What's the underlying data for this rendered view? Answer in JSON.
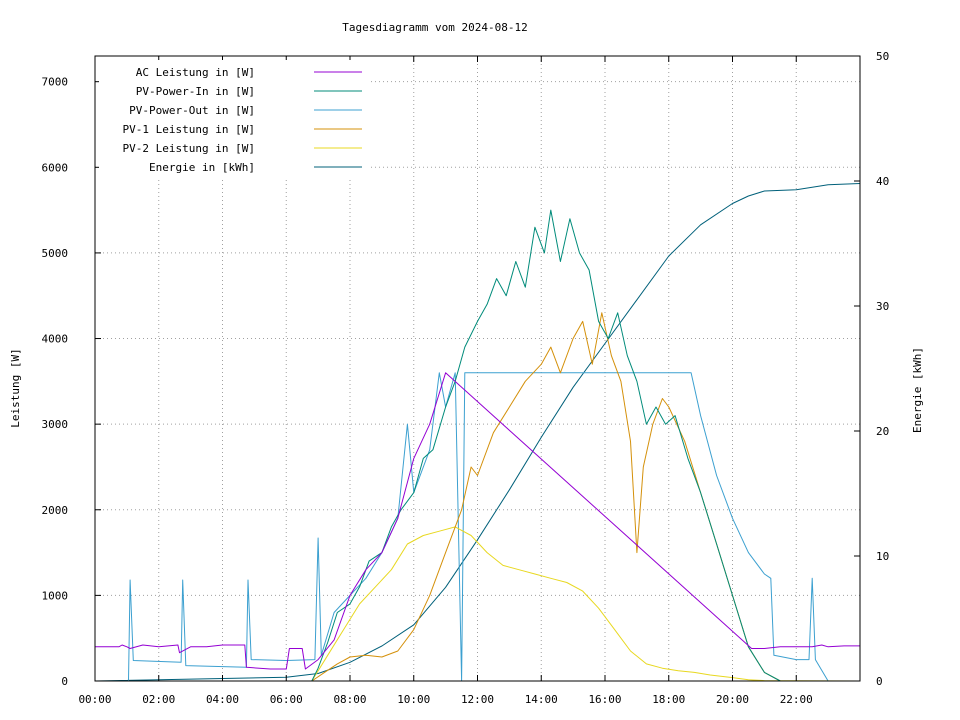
{
  "chart_data": {
    "type": "line",
    "title": "Tagesdiagramm vom 2024-08-12",
    "ylabel_left": "Leistung [W]",
    "ylabel_right": "Energie [kWh]",
    "x_ticks": [
      "00:00",
      "02:00",
      "04:00",
      "06:00",
      "08:00",
      "10:00",
      "12:00",
      "14:00",
      "16:00",
      "18:00",
      "20:00",
      "22:00"
    ],
    "x_range_hours": [
      0,
      24
    ],
    "y_left_range": [
      0,
      7300
    ],
    "y_left_ticks": [
      0,
      1000,
      2000,
      3000,
      4000,
      5000,
      6000,
      7000
    ],
    "y_right_range": [
      0,
      50
    ],
    "y_right_ticks": [
      0,
      10,
      20,
      30,
      40,
      50
    ],
    "grid": true,
    "legend_position": "top-left",
    "series": [
      {
        "name": "AC Leistung in [W]",
        "color": "#9400d3",
        "axis": "left",
        "x": [
          0,
          0.75,
          0.85,
          1.0,
          1.1,
          1.5,
          2.0,
          2.6,
          2.65,
          3.0,
          3.5,
          4.0,
          4.7,
          4.75,
          5.5,
          6.0,
          6.1,
          6.5,
          6.6,
          7.0,
          7.5,
          8.0,
          8.5,
          9.0,
          9.5,
          10.0,
          10.5,
          11.0,
          20.6,
          21.0,
          21.5,
          22.0,
          22.5,
          22.8,
          23.0,
          23.5,
          24.0
        ],
        "values": [
          400,
          400,
          420,
          400,
          380,
          420,
          400,
          420,
          330,
          400,
          400,
          420,
          420,
          160,
          140,
          140,
          380,
          380,
          140,
          250,
          480,
          1000,
          1300,
          1500,
          1900,
          2600,
          3000,
          3600,
          380,
          380,
          400,
          400,
          400,
          420,
          400,
          410,
          410
        ]
      },
      {
        "name": "PV-Power-In in [W]",
        "color": "#008b7a",
        "axis": "left",
        "x": [
          0,
          6.8,
          7.0,
          7.3,
          7.6,
          8.0,
          8.3,
          8.6,
          9.0,
          9.3,
          9.6,
          10.0,
          10.3,
          10.6,
          11.0,
          11.3,
          11.6,
          12.0,
          12.3,
          12.6,
          12.9,
          13.2,
          13.5,
          13.8,
          14.1,
          14.3,
          14.6,
          14.9,
          15.2,
          15.5,
          15.8,
          16.1,
          16.4,
          16.7,
          17.0,
          17.3,
          17.6,
          17.9,
          18.2,
          18.6,
          19.0,
          19.5,
          20.0,
          20.5,
          21.0,
          21.5,
          24.0
        ],
        "values": [
          0,
          0,
          150,
          450,
          800,
          900,
          1100,
          1400,
          1500,
          1800,
          2000,
          2200,
          2600,
          2700,
          3200,
          3500,
          3900,
          4200,
          4400,
          4700,
          4500,
          4900,
          4600,
          5300,
          5000,
          5500,
          4900,
          5400,
          5000,
          4800,
          4200,
          4000,
          4300,
          3800,
          3500,
          3000,
          3200,
          3000,
          3100,
          2600,
          2200,
          1600,
          1000,
          400,
          100,
          0,
          0
        ]
      },
      {
        "name": "PV-Power-Out in [W]",
        "color": "#3ca0d0",
        "axis": "left",
        "x": [
          0,
          1.05,
          1.1,
          1.2,
          2.7,
          2.75,
          2.85,
          4.75,
          4.8,
          4.9,
          6.0,
          6.9,
          7.0,
          7.1,
          7.5,
          8.0,
          8.5,
          9.0,
          9.5,
          9.8,
          10.0,
          10.5,
          10.8,
          11.0,
          11.3,
          11.5,
          11.6,
          12.0,
          14.0,
          16.0,
          17.0,
          18.0,
          18.7,
          19.0,
          19.5,
          20.0,
          20.5,
          21.0,
          21.2,
          21.3,
          22.0,
          22.4,
          22.5,
          22.6,
          23.0,
          24.0
        ],
        "values": [
          0,
          0,
          1180,
          240,
          220,
          1180,
          180,
          160,
          1180,
          250,
          240,
          250,
          1670,
          300,
          800,
          1000,
          1200,
          1500,
          1900,
          3000,
          2200,
          2700,
          3600,
          3200,
          3600,
          0,
          3600,
          3600,
          3600,
          3600,
          3600,
          3600,
          3600,
          3100,
          2400,
          1900,
          1500,
          1250,
          1200,
          300,
          250,
          250,
          1200,
          250,
          0,
          0
        ]
      },
      {
        "name": "PV-1 Leistung in [W]",
        "color": "#d4900a",
        "axis": "left",
        "x": [
          0,
          6.8,
          7.2,
          7.6,
          8.0,
          8.5,
          9.0,
          9.5,
          10.0,
          10.5,
          11.0,
          11.5,
          11.8,
          12.0,
          12.5,
          13.0,
          13.5,
          14.0,
          14.3,
          14.6,
          15.0,
          15.3,
          15.6,
          15.9,
          16.2,
          16.5,
          16.8,
          17.0,
          17.2,
          17.5,
          17.8,
          18.0,
          18.5,
          19.0,
          19.5,
          20.0,
          20.5,
          21.0,
          21.5,
          24.0
        ],
        "values": [
          0,
          0,
          100,
          200,
          280,
          300,
          280,
          350,
          600,
          1000,
          1500,
          2000,
          2500,
          2400,
          2900,
          3200,
          3500,
          3700,
          3900,
          3600,
          4000,
          4200,
          3700,
          4300,
          3800,
          3500,
          2800,
          1500,
          2500,
          3000,
          3300,
          3200,
          2800,
          2200,
          1600,
          1000,
          400,
          100,
          0,
          0
        ]
      },
      {
        "name": "PV-2 Leistung in [W]",
        "color": "#e8d820",
        "axis": "left",
        "x": [
          0,
          6.8,
          7.3,
          7.8,
          8.3,
          8.8,
          9.3,
          9.8,
          10.3,
          10.8,
          11.3,
          11.8,
          12.3,
          12.8,
          13.3,
          13.8,
          14.3,
          14.8,
          15.3,
          15.8,
          16.3,
          16.8,
          17.3,
          17.8,
          18.3,
          18.8,
          19.3,
          20.0,
          20.5,
          21.0,
          24.0
        ],
        "values": [
          0,
          0,
          300,
          600,
          900,
          1100,
          1300,
          1600,
          1700,
          1750,
          1800,
          1700,
          1500,
          1350,
          1300,
          1250,
          1200,
          1150,
          1050,
          850,
          600,
          350,
          200,
          150,
          120,
          100,
          70,
          40,
          15,
          5,
          0
        ]
      },
      {
        "name": "Energie in [kWh]",
        "color": "#00607a",
        "axis": "right",
        "x": [
          0,
          6.0,
          7.0,
          8.0,
          9.0,
          10.0,
          11.0,
          12.0,
          13.0,
          14.0,
          15.0,
          16.0,
          17.0,
          18.0,
          19.0,
          20.0,
          20.5,
          21.0,
          22.0,
          23.0,
          24.0
        ],
        "values": [
          0,
          0.3,
          0.6,
          1.5,
          2.8,
          4.5,
          7.5,
          11.3,
          15.3,
          19.5,
          23.5,
          27.0,
          30.5,
          34.0,
          36.5,
          38.2,
          38.8,
          39.2,
          39.3,
          39.7,
          39.8
        ]
      }
    ]
  }
}
